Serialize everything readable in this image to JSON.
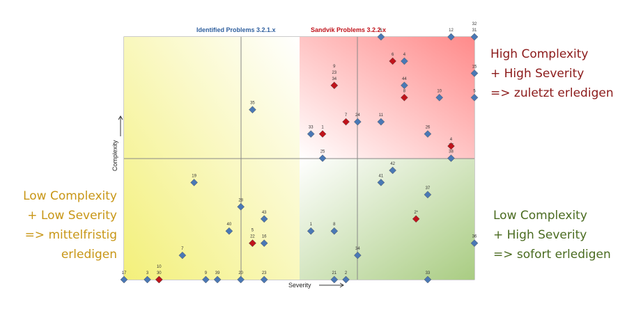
{
  "chart_data": {
    "type": "scatter",
    "xlabel": "Severity",
    "ylabel": "Complexity",
    "xlim": [
      0,
      30
    ],
    "ylim": [
      0,
      20
    ],
    "grid": true,
    "quadrant_lines": [
      10,
      10
    ],
    "series": [
      {
        "name": "Identified Problems 3.2.1.x",
        "color": "#4a78b5",
        "points": [
          {
            "label": "35",
            "x": 11,
            "y": 14
          },
          {
            "label": "33",
            "x": 16,
            "y": 12
          },
          {
            "label": "25",
            "x": 17,
            "y": 10
          },
          {
            "label": "24",
            "x": 20,
            "y": 13
          },
          {
            "label": "11",
            "x": 22,
            "y": 13
          },
          {
            "label": "26",
            "x": 26,
            "y": 12
          },
          {
            "label": "6",
            "x": 22,
            "y": 20
          },
          {
            "label": "4",
            "x": 24,
            "y": 18
          },
          {
            "label": "44",
            "x": 24,
            "y": 16
          },
          {
            "label": "10",
            "x": 27,
            "y": 15
          },
          {
            "label": "12",
            "x": 28,
            "y": 20
          },
          {
            "label": "31",
            "x": 30,
            "y": 20
          },
          {
            "label": "32",
            "x": 30,
            "y": 20
          },
          {
            "label": "15",
            "x": 30,
            "y": 17
          },
          {
            "label": "5",
            "x": 30,
            "y": 15
          },
          {
            "label": "38",
            "x": 28,
            "y": 10
          },
          {
            "label": "27",
            "x": 28,
            "y": 10
          },
          {
            "label": "42",
            "x": 23,
            "y": 9
          },
          {
            "label": "41",
            "x": 22,
            "y": 8
          },
          {
            "label": "37",
            "x": 26,
            "y": 7
          },
          {
            "label": "1",
            "x": 16,
            "y": 4
          },
          {
            "label": "8",
            "x": 18,
            "y": 4
          },
          {
            "label": "34",
            "x": 20,
            "y": 2
          },
          {
            "label": "36",
            "x": 30,
            "y": 3
          },
          {
            "label": "21",
            "x": 18,
            "y": 0
          },
          {
            "label": "2",
            "x": 19,
            "y": 0
          },
          {
            "label": "33",
            "x": 26,
            "y": 0
          },
          {
            "label": "17",
            "x": 0,
            "y": 0
          },
          {
            "label": "3",
            "x": 2,
            "y": 0
          },
          {
            "label": "9",
            "x": 7,
            "y": 0
          },
          {
            "label": "39",
            "x": 8,
            "y": 0
          },
          {
            "label": "20",
            "x": 10,
            "y": 0
          },
          {
            "label": "23",
            "x": 12,
            "y": 0
          },
          {
            "label": "19",
            "x": 6,
            "y": 8
          },
          {
            "label": "28",
            "x": 10,
            "y": 6
          },
          {
            "label": "43",
            "x": 12,
            "y": 5
          },
          {
            "label": "40",
            "x": 9,
            "y": 4
          },
          {
            "label": "16",
            "x": 12,
            "y": 3
          },
          {
            "label": "7",
            "x": 5,
            "y": 2
          }
        ]
      },
      {
        "name": "Sandvik Problems 3.2.2.x",
        "color": "#c0131b",
        "points": [
          {
            "label": "34",
            "x": 18,
            "y": 16
          },
          {
            "label": "23",
            "x": 18,
            "y": 16
          },
          {
            "label": "9",
            "x": 18,
            "y": 16
          },
          {
            "label": "7",
            "x": 19,
            "y": 13
          },
          {
            "label": "1",
            "x": 17,
            "y": 12
          },
          {
            "label": "6",
            "x": 23,
            "y": 18
          },
          {
            "label": "8",
            "x": 24,
            "y": 15
          },
          {
            "label": "4",
            "x": 28,
            "y": 11
          },
          {
            "label": "2*",
            "x": 25,
            "y": 5
          },
          {
            "label": "22",
            "x": 11,
            "y": 3
          },
          {
            "label": "5",
            "x": 11,
            "y": 3
          },
          {
            "label": "30",
            "x": 3,
            "y": 0
          },
          {
            "label": "10",
            "x": 3,
            "y": 0
          }
        ]
      }
    ],
    "annotations": {
      "high_complexity_high_severity": [
        "High Complexity",
        "+ High Severity",
        "=> zuletzt erledigen"
      ],
      "low_complexity_low_severity": [
        "Low Complexity",
        "+ Low Severity",
        "=> mittelfristig",
        "erledigen"
      ],
      "low_complexity_high_severity": [
        "Low Complexity",
        "+ High Severity",
        "=> sofort erledigen"
      ]
    }
  }
}
